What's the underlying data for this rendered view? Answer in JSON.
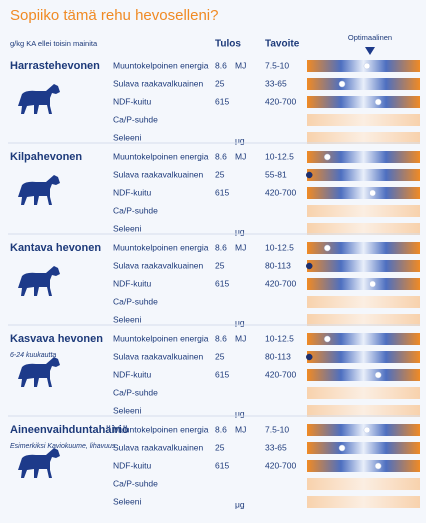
{
  "header": {
    "title": "Sopiiko tämä rehu hevoselleni?",
    "units_note": "g/kg KA ellei toisin mainita",
    "col_result": "Tulos",
    "col_target": "Tavoite",
    "optimal": "Optimaalinen"
  },
  "sections": [
    {
      "name": "Harrastehevonen",
      "rows": [
        {
          "label": "Muuntokelpoinen energia",
          "result": "8.6",
          "unit": "MJ",
          "target": "7.5-10",
          "marker": 53
        },
        {
          "label": "Sulava raakavalkuainen",
          "result": "25",
          "target": "33-65",
          "marker": 31
        },
        {
          "label": "NDF-kuitu",
          "result": "615",
          "target": "420-700",
          "marker": 63
        },
        {
          "label": "Ca/P-suhde",
          "marker": null
        },
        {
          "label": "Seleeni",
          "unit": "μg",
          "marker": null
        }
      ]
    },
    {
      "name": "Kilpahevonen",
      "rows": [
        {
          "label": "Muuntokelpoinen energia",
          "result": "8.6",
          "unit": "MJ",
          "target": "10-12.5",
          "marker": 18
        },
        {
          "label": "Sulava raakavalkuainen",
          "result": "25",
          "target": "55-81",
          "marker": 2
        },
        {
          "label": "NDF-kuitu",
          "result": "615",
          "target": "420-700",
          "marker": 58
        },
        {
          "label": "Ca/P-suhde",
          "marker": null
        },
        {
          "label": "Seleeni",
          "unit": "μg",
          "marker": null
        }
      ]
    },
    {
      "name": "Kantava hevonen",
      "rows": [
        {
          "label": "Muuntokelpoinen energia",
          "result": "8.6",
          "unit": "MJ",
          "target": "10-12.5",
          "marker": 18
        },
        {
          "label": "Sulava raakavalkuainen",
          "result": "25",
          "target": "80-113",
          "marker": 2
        },
        {
          "label": "NDF-kuitu",
          "result": "615",
          "target": "420-700",
          "marker": 58
        },
        {
          "label": "Ca/P-suhde",
          "marker": null
        },
        {
          "label": "Seleeni",
          "unit": "μg",
          "marker": null
        }
      ]
    },
    {
      "name": "Kasvava hevonen",
      "subtitle": "6-24 kuukautta",
      "rows": [
        {
          "label": "Muuntokelpoinen energia",
          "result": "8.6",
          "unit": "MJ",
          "target": "10-12.5",
          "marker": 18
        },
        {
          "label": "Sulava raakavalkuainen",
          "result": "25",
          "target": "80-113",
          "marker": 2
        },
        {
          "label": "NDF-kuitu",
          "result": "615",
          "target": "420-700",
          "marker": 63
        },
        {
          "label": "Ca/P-suhde",
          "marker": null
        },
        {
          "label": "Seleeni",
          "unit": "μg",
          "marker": null
        }
      ]
    },
    {
      "name": "Aineenvaihduntahäiriö",
      "subtitle": "Esimerkiksi Kaviokuume, lihavuus",
      "rows": [
        {
          "label": "Muuntokelpoinen energia",
          "result": "8.6",
          "unit": "MJ",
          "target": "7.5-10",
          "marker": 53
        },
        {
          "label": "Sulava raakavalkuainen",
          "result": "25",
          "target": "33-65",
          "marker": 31
        },
        {
          "label": "NDF-kuitu",
          "result": "615",
          "target": "420-700",
          "marker": 63
        },
        {
          "label": "Ca/P-suhde",
          "marker": null
        },
        {
          "label": "Seleeni",
          "unit": "μg",
          "marker": null
        }
      ]
    }
  ]
}
